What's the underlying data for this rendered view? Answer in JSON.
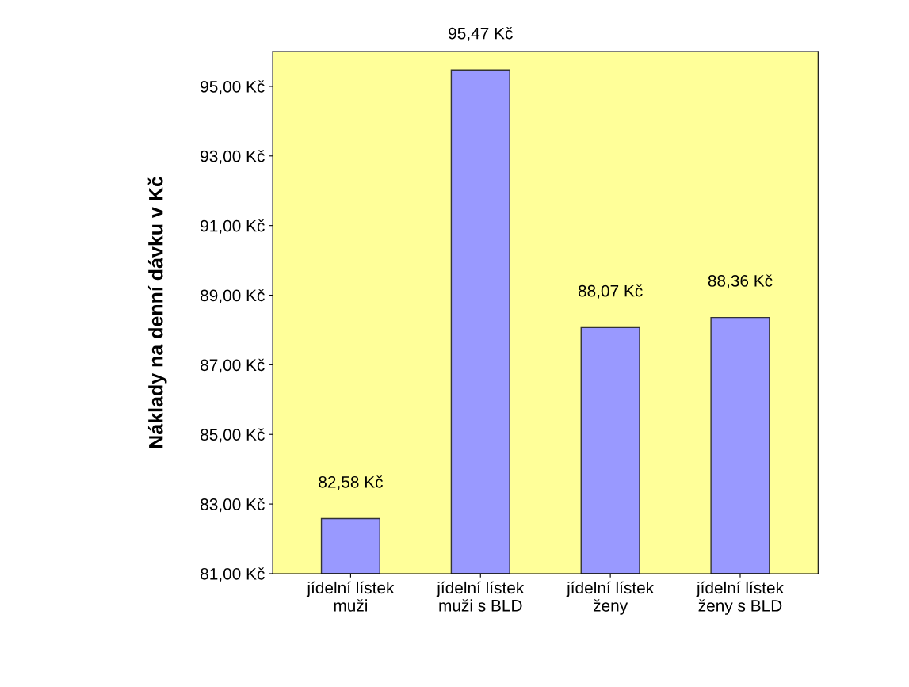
{
  "chart_data": {
    "type": "bar",
    "ylabel": "Náklady na denní dávku v Kč",
    "categories": [
      "jídelní lístek\nmuži",
      "jídelní lístek\nmuži s BLD",
      "jídelní lístek\nženy",
      "jídelní lístek\nženy s BLD"
    ],
    "values": [
      82.58,
      95.47,
      88.07,
      88.36
    ],
    "value_labels": [
      "82,58 Kč",
      "95,47 Kč",
      "88,07 Kč",
      "88,36 Kč"
    ],
    "color": "#9999ff",
    "ylim": [
      81,
      96
    ],
    "yticks": [
      {
        "value": 81,
        "label": "81,00 Kč"
      },
      {
        "value": 83,
        "label": "83,00 Kč"
      },
      {
        "value": 85,
        "label": "85,00 Kč"
      },
      {
        "value": 87,
        "label": "87,00 Kč"
      },
      {
        "value": 89,
        "label": "89,00 Kč"
      },
      {
        "value": 91,
        "label": "91,00 Kč"
      },
      {
        "value": 93,
        "label": "93,00 Kč"
      },
      {
        "value": 95,
        "label": "95,00 Kč"
      }
    ],
    "grid": false,
    "legend": false
  }
}
